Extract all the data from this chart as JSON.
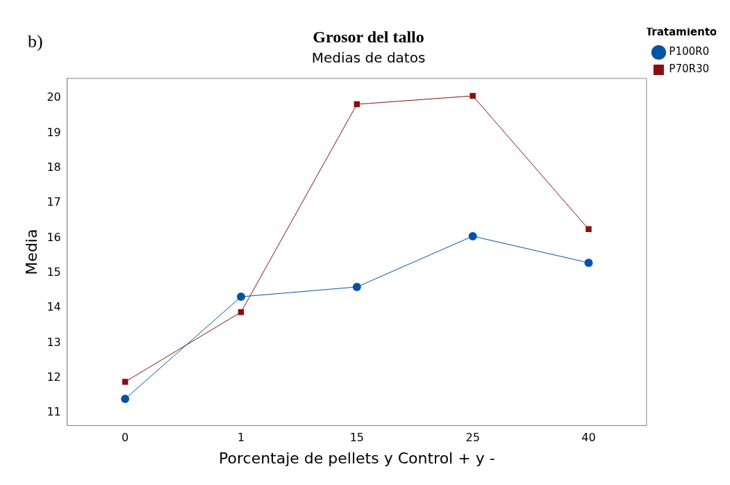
{
  "chart_data": {
    "type": "line",
    "title": "Grosor del tallo",
    "subtitle": "Medias de datos",
    "xlabel": "Porcentaje de pellets y Control + y -",
    "ylabel": "Media",
    "legend_title": "Tratamiento",
    "annotations": [
      "b)"
    ],
    "categories": [
      "0",
      "1",
      "15",
      "25",
      "40"
    ],
    "series": [
      {
        "name": "P100R0",
        "color": "#0054a6",
        "marker": "circle",
        "values": [
          11.4,
          14.32,
          14.6,
          16.05,
          15.29
        ]
      },
      {
        "name": "P70R30",
        "color": "#8b0e0e",
        "marker": "square",
        "values": [
          11.89,
          13.88,
          19.82,
          20.06,
          16.25
        ]
      }
    ],
    "ylim": [
      10.64,
      20.56
    ],
    "yticks": [
      11,
      12,
      13,
      14,
      15,
      16,
      17,
      18,
      19,
      20
    ],
    "grid": false,
    "legend": "top right",
    "line_style": "solid"
  }
}
